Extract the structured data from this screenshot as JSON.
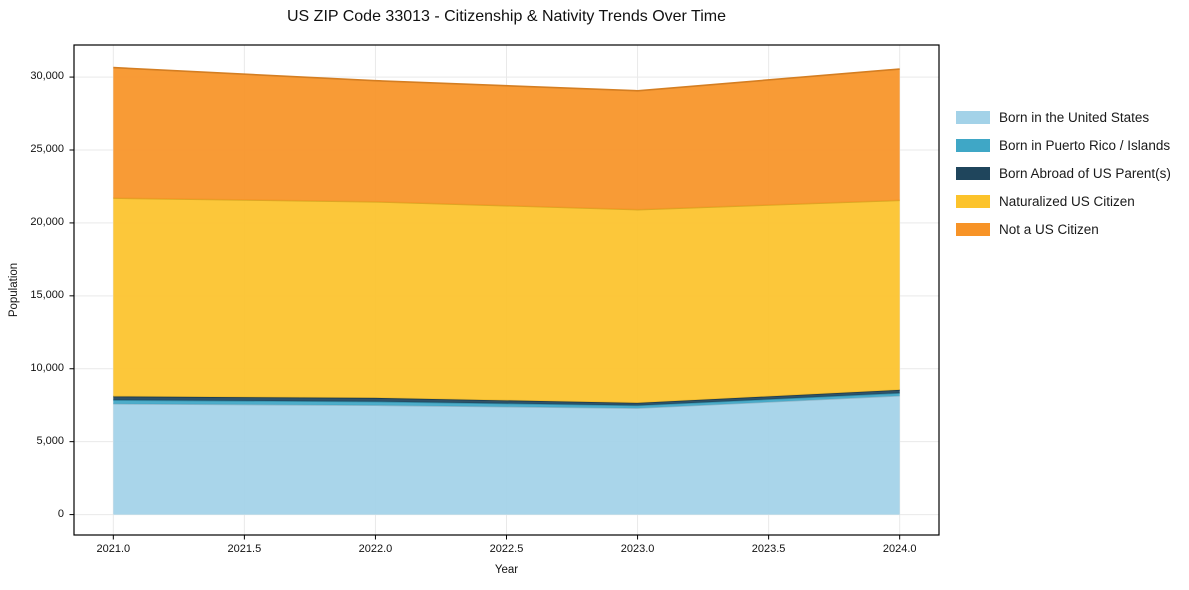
{
  "figure": {
    "title": "US ZIP Code 33013 - Citizenship & Nativity Trends Over Time"
  },
  "axes": {
    "x_label": "Year",
    "y_label": "Population",
    "x_ticks": [
      "2021.0",
      "2021.5",
      "2022.0",
      "2022.5",
      "2023.0",
      "2023.5",
      "2024.0"
    ],
    "y_ticks": [
      "0",
      "5,000",
      "10,000",
      "15,000",
      "20,000",
      "25,000",
      "30,000"
    ]
  },
  "chart_data": {
    "type": "area",
    "stacked": true,
    "title": "US ZIP Code 33013 - Citizenship & Nativity Trends Over Time",
    "xlabel": "Year",
    "ylabel": "Population",
    "x": [
      2021,
      2022,
      2023,
      2024
    ],
    "series": [
      {
        "name": "Born in the United States",
        "color": "#A3D2E8",
        "values": [
          7600,
          7500,
          7300,
          8150
        ]
      },
      {
        "name": "Born in Puerto Rico / Islands",
        "color": "#3FA7C6",
        "values": [
          250,
          250,
          180,
          180
        ]
      },
      {
        "name": "Born Abroad of US Parent(s)",
        "color": "#1F455C",
        "values": [
          250,
          250,
          180,
          220
        ]
      },
      {
        "name": "Naturalized US Citizen",
        "color": "#FCC32B",
        "values": [
          13600,
          13450,
          13250,
          13000
        ]
      },
      {
        "name": "Not a US Citizen",
        "color": "#F79327",
        "values": [
          8950,
          8300,
          8150,
          9000
        ]
      }
    ],
    "stack_totals": [
      30650,
      29750,
      29060,
      30550
    ],
    "x_tick_values": [
      2021,
      2021.5,
      2022,
      2022.5,
      2023,
      2023.5,
      2024
    ],
    "y_tick_values": [
      0,
      5000,
      10000,
      15000,
      20000,
      25000,
      30000
    ],
    "xlim": [
      2020.85,
      2024.15
    ],
    "ylim": [
      -1400,
      32200
    ],
    "grid": true,
    "grid_color": "#e9e9e9",
    "legend_position": "right",
    "fill_opacity": 0.93
  }
}
